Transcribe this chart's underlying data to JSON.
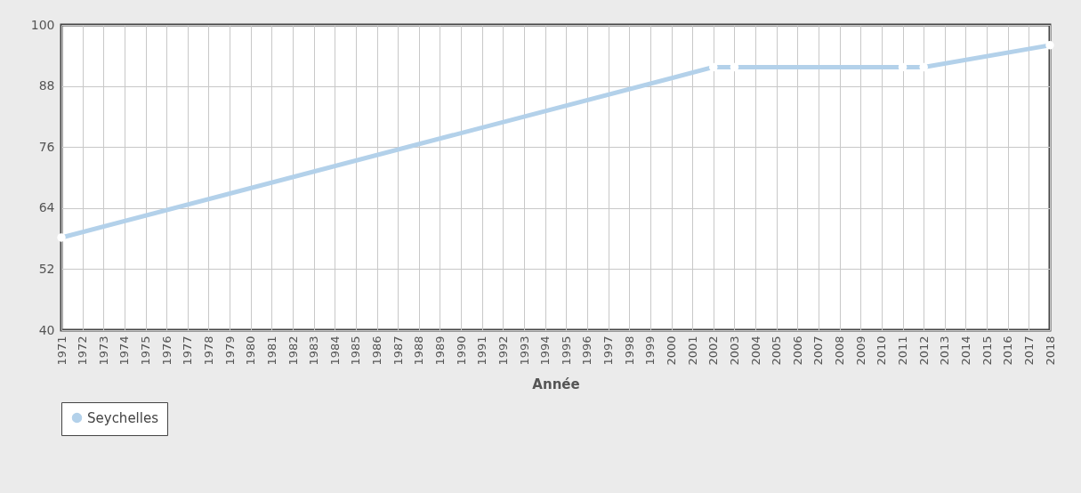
{
  "chart_data": {
    "type": "line",
    "xlabel": "Année",
    "x": [
      1971,
      2002,
      2003,
      2011,
      2012,
      2018
    ],
    "series": [
      {
        "name": "Seychelles",
        "color": "#b3d1ea",
        "values": [
          58.2,
          91.7,
          91.7,
          91.7,
          91.7,
          96.0
        ]
      }
    ],
    "xlim": [
      1971,
      2018
    ],
    "xticks": [
      1971,
      1972,
      1973,
      1974,
      1975,
      1976,
      1977,
      1978,
      1979,
      1980,
      1981,
      1982,
      1983,
      1984,
      1985,
      1986,
      1987,
      1988,
      1989,
      1990,
      1991,
      1992,
      1993,
      1994,
      1995,
      1996,
      1997,
      1998,
      1999,
      2000,
      2001,
      2002,
      2003,
      2004,
      2005,
      2006,
      2007,
      2008,
      2009,
      2010,
      2011,
      2012,
      2013,
      2014,
      2015,
      2016,
      2017,
      2018
    ],
    "ylim": [
      40,
      100
    ],
    "yticks": [
      40,
      52,
      64,
      76,
      88,
      100
    ],
    "grid": true,
    "legend": "bottom",
    "marker": "circle",
    "line_style": "solid"
  }
}
